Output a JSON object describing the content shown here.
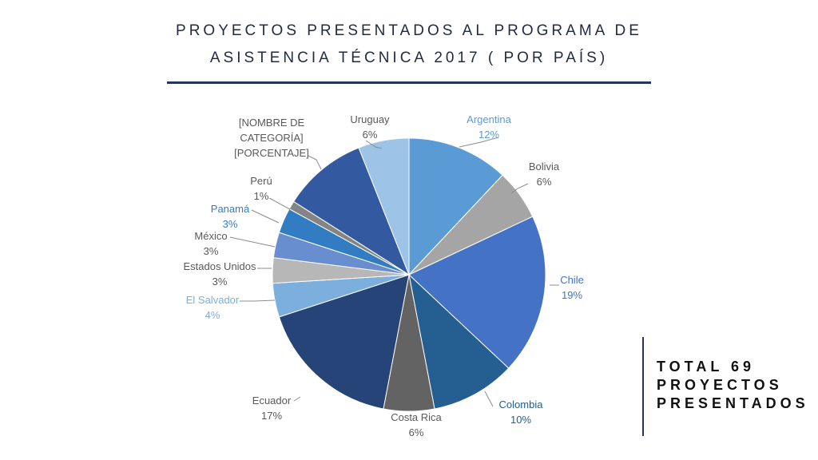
{
  "title": {
    "line1": "PROYECTOS PRESENTADOS AL PROGRAMA DE",
    "line2": "ASISTENCIA TÉCNICA 2017 ( POR PAÍS)"
  },
  "total": {
    "line1": "TOTAL 69",
    "line2": "PROYECTOS",
    "line3": "PRESENTADOS"
  },
  "chart_data": {
    "type": "pie",
    "slices": [
      {
        "label": "Argentina",
        "percent_label": "12%",
        "value": 12,
        "color": "#5b9bd5",
        "label_color": "#5b9bd5"
      },
      {
        "label": "Bolivia",
        "percent_label": "6%",
        "value": 6,
        "color": "#a5a5a5",
        "label_color": "#595959"
      },
      {
        "label": "Chile",
        "percent_label": "19%",
        "value": 19,
        "color": "#4472c4",
        "label_color": "#4472c4"
      },
      {
        "label": "Colombia",
        "percent_label": "10%",
        "value": 10,
        "color": "#255e91",
        "label_color": "#255e91"
      },
      {
        "label": "Costa Rica",
        "percent_label": "6%",
        "value": 6,
        "color": "#636363",
        "label_color": "#595959"
      },
      {
        "label": "Ecuador",
        "percent_label": "17%",
        "value": 17,
        "color": "#264478",
        "label_color": "#595959"
      },
      {
        "label": "El Salvador",
        "percent_label": "4%",
        "value": 4,
        "color": "#7cafdd",
        "label_color": "#7cafdd"
      },
      {
        "label": "Estados Unidos",
        "percent_label": "3%",
        "value": 3,
        "color": "#b7b7b7",
        "label_color": "#595959"
      },
      {
        "label": "México",
        "percent_label": "3%",
        "value": 3,
        "color": "#698ed0",
        "label_color": "#595959"
      },
      {
        "label": "Panamá",
        "percent_label": "3%",
        "value": 3,
        "color": "#327dc2",
        "label_color": "#327dc2"
      },
      {
        "label": "Perú",
        "percent_label": "1%",
        "value": 1,
        "color": "#848484",
        "label_color": "#595959"
      },
      {
        "label": "[NOMBRE DE CATEGORÍA]",
        "percent_label": "[PORCENTAJE]",
        "value": 10,
        "color": "#335aa1",
        "label_color": "#595959"
      },
      {
        "label": "Uruguay",
        "percent_label": "6%",
        "value": 6,
        "color": "#9dc3e6",
        "label_color": "#595959"
      }
    ]
  }
}
